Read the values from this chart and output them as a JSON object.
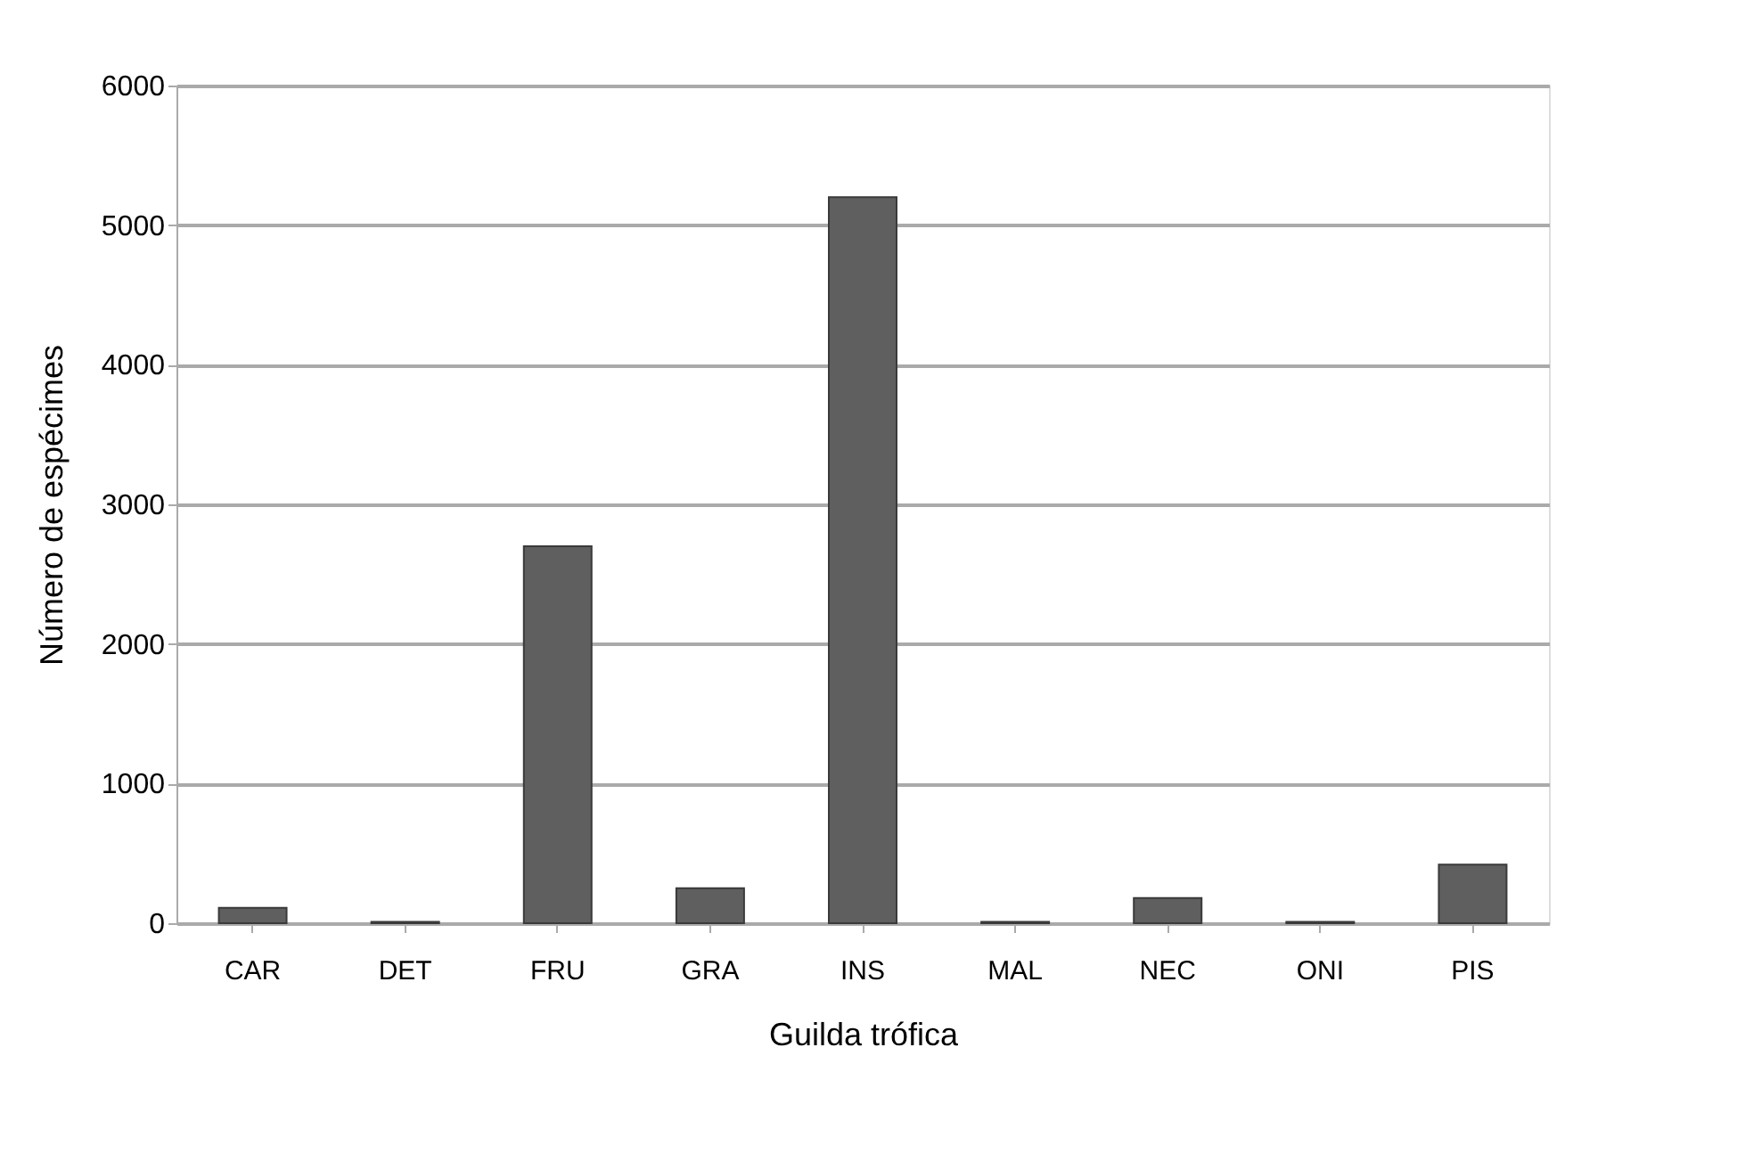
{
  "chart_data": {
    "type": "bar",
    "xlabel": "Guilda trófica",
    "ylabel": "Número de espécimes",
    "categories": [
      "CAR",
      "DET",
      "FRU",
      "GRA",
      "INS",
      "MAL",
      "NEC",
      "ONI",
      "PIS"
    ],
    "values": [
      110,
      10,
      2700,
      250,
      5200,
      10,
      180,
      10,
      420
    ],
    "color": "#5f5f5f",
    "ylim": [
      0,
      6000
    ],
    "yticks": [
      0,
      1000,
      2000,
      3000,
      4000,
      5000,
      6000
    ],
    "grid": "y"
  }
}
